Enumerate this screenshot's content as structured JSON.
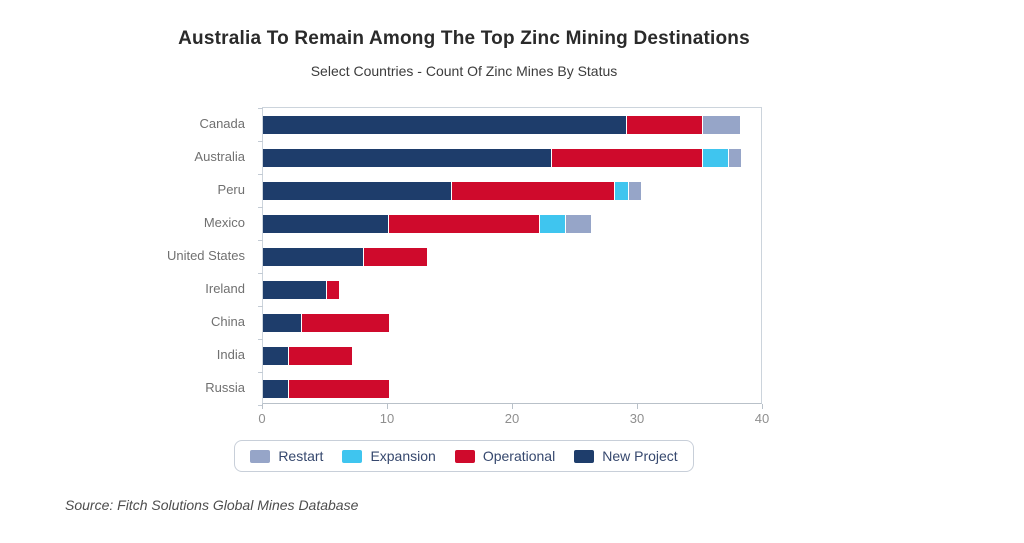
{
  "chart_data": {
    "type": "bar",
    "orientation": "horizontal",
    "stacked": true,
    "title": "Australia To Remain Among The Top Zinc Mining Destinations",
    "subtitle": "Select Countries - Count Of Zinc Mines By Status",
    "categories": [
      "Canada",
      "Australia",
      "Peru",
      "Mexico",
      "United States",
      "Ireland",
      "China",
      "India",
      "Russia"
    ],
    "series": [
      {
        "name": "New Project",
        "color": "#1e3d6b",
        "values": [
          29,
          23,
          15,
          10,
          8,
          5,
          3,
          2,
          2
        ]
      },
      {
        "name": "Operational",
        "color": "#cf0a2c",
        "values": [
          6,
          12,
          13,
          12,
          5,
          1,
          7,
          5,
          8
        ]
      },
      {
        "name": "Expansion",
        "color": "#3fc5ef",
        "values": [
          0,
          2,
          1,
          2,
          0,
          0,
          0,
          0,
          0
        ]
      },
      {
        "name": "Restart",
        "color": "#96a5c8",
        "values": [
          3,
          1,
          1,
          2,
          0,
          0,
          0,
          0,
          0
        ]
      }
    ],
    "legend": {
      "position": "bottom",
      "order": [
        "Restart",
        "Expansion",
        "Operational",
        "New Project"
      ]
    },
    "xlabel": "",
    "ylabel": "",
    "xlim": [
      0,
      40
    ],
    "x_ticks": [
      "0",
      "10",
      "20",
      "30",
      "40"
    ],
    "grid": false,
    "source": "Source: Fitch Solutions Global Mines Database"
  }
}
